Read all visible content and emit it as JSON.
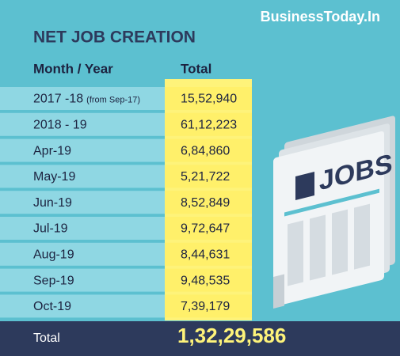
{
  "brand": "BusinessToday.In",
  "title": "NET JOB CREATION",
  "table": {
    "header": [
      "Month / Year",
      "Total"
    ],
    "rows": [
      {
        "label": "2017 -18",
        "note": "(from Sep-17)",
        "value": "15,52,940"
      },
      {
        "label": "2018 - 19",
        "value": "61,12,223"
      },
      {
        "label": "Apr-19",
        "value": "6,84,860"
      },
      {
        "label": "May-19",
        "value": "5,21,722"
      },
      {
        "label": "Jun-19",
        "value": "8,52,849"
      },
      {
        "label": "Jul-19",
        "value": "9,72,647"
      },
      {
        "label": "Aug-19",
        "value": "8,44,631"
      },
      {
        "label": "Sep-19",
        "value": "9,48,535"
      },
      {
        "label": "Oct-19",
        "value": "7,39,179"
      }
    ],
    "total": {
      "label": "Total",
      "value": "1,32,29,586"
    }
  },
  "illustration": {
    "label": "JOBS"
  }
}
